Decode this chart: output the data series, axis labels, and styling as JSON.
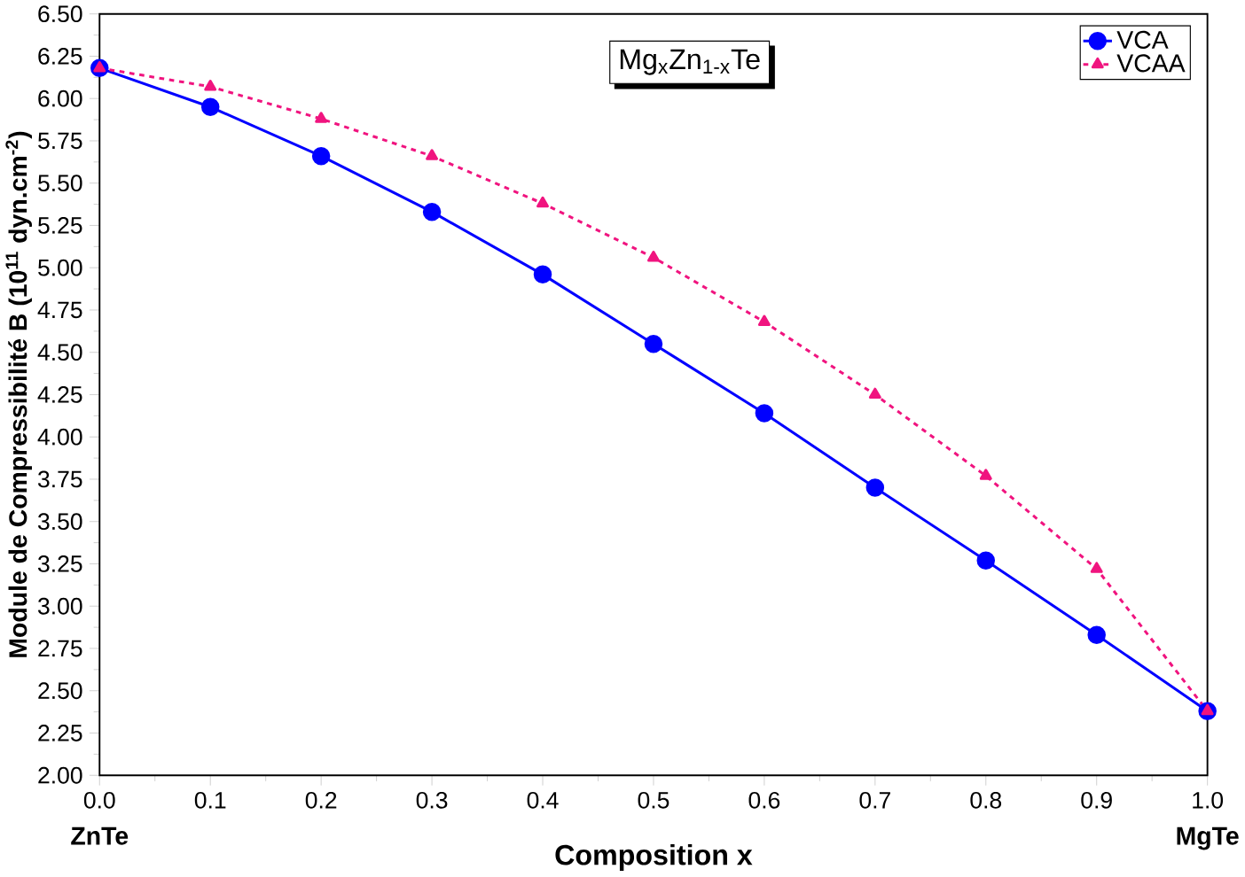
{
  "chart_data": {
    "type": "line",
    "xlabel": "**Composition x**",
    "ylabel": "Module de Compressibilité B (10$^{11}$ dyn.cm$^{-2}$)",
    "x": [
      0.0,
      0.1,
      0.2,
      0.3,
      0.4,
      0.5,
      0.6,
      0.7,
      0.8,
      0.9,
      1.0
    ],
    "series": [
      {
        "name": "VCA",
        "color": "#0000ff",
        "marker": "circle",
        "line_style": "solid",
        "values": [
          6.18,
          5.95,
          5.66,
          5.33,
          4.96,
          4.55,
          4.14,
          3.7,
          3.27,
          2.83,
          2.38
        ]
      },
      {
        "name": "VCAA",
        "color": "#f0147f",
        "marker": "triangle",
        "line_style": "dashed",
        "values": [
          6.18,
          6.07,
          5.88,
          5.66,
          5.38,
          5.06,
          4.68,
          4.25,
          3.77,
          3.22,
          2.38
        ]
      }
    ],
    "xlim": [
      0.0,
      1.0
    ],
    "xticks": [
      {
        "value": 0.0,
        "label": "0.0"
      },
      {
        "value": 0.1,
        "label": "0.1"
      },
      {
        "value": 0.2,
        "label": "0.2"
      },
      {
        "value": 0.3,
        "label": "0.3"
      },
      {
        "value": 0.4,
        "label": "0.4"
      },
      {
        "value": 0.5,
        "label": "0.5"
      },
      {
        "value": 0.6,
        "label": "0.6"
      },
      {
        "value": 0.7,
        "label": "0.7"
      },
      {
        "value": 0.8,
        "label": "0.8"
      },
      {
        "value": 0.9,
        "label": "0.9"
      },
      {
        "value": 1.0,
        "label": "1.0"
      }
    ],
    "ylim": [
      2.0,
      6.5
    ],
    "yticks": [
      {
        "value": 2.0,
        "label": "2.00"
      },
      {
        "value": 2.25,
        "label": "2.25"
      },
      {
        "value": 2.5,
        "label": "2.50"
      },
      {
        "value": 2.75,
        "label": "2.75"
      },
      {
        "value": 3.0,
        "label": "3.00"
      },
      {
        "value": 3.25,
        "label": "3.25"
      },
      {
        "value": 3.5,
        "label": "3.50"
      },
      {
        "value": 3.75,
        "label": "3.75"
      },
      {
        "value": 4.0,
        "label": "4.00"
      },
      {
        "value": 4.25,
        "label": "4.25"
      },
      {
        "value": 4.5,
        "label": "4.50"
      },
      {
        "value": 4.75,
        "label": "4.75"
      },
      {
        "value": 5.0,
        "label": "5.00"
      },
      {
        "value": 5.25,
        "label": "5.25"
      },
      {
        "value": 5.5,
        "label": "5.50"
      },
      {
        "value": 5.75,
        "label": "5.75"
      },
      {
        "value": 6.0,
        "label": "6.00"
      },
      {
        "value": 6.25,
        "label": "6.25"
      },
      {
        "value": 6.5,
        "label": "6.50"
      }
    ],
    "annotations": [
      "Mg$_{x}$Zn$_{1-x}$Te",
      "**ZnTe**",
      "**MgTe**"
    ],
    "grid": false,
    "legend": "top right"
  }
}
